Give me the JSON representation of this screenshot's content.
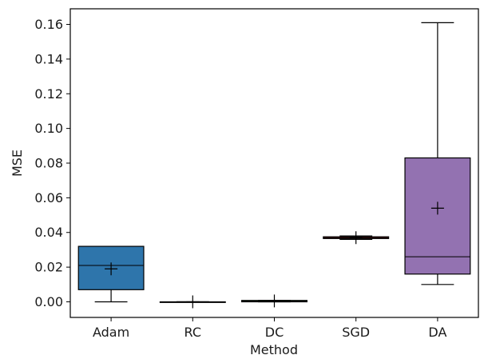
{
  "chart_data": {
    "type": "box",
    "title": "",
    "xlabel": "Method",
    "ylabel": "MSE",
    "ylim": [
      -0.009,
      0.169
    ],
    "yticks": [
      "0.00",
      "0.02",
      "0.04",
      "0.06",
      "0.08",
      "0.10",
      "0.12",
      "0.14",
      "0.16"
    ],
    "grid": false,
    "legend": "none",
    "categories": [
      "Adam",
      "RC",
      "DC",
      "SGD",
      "DA"
    ],
    "boxes": [
      {
        "name": "Adam",
        "whislo": 0.0,
        "q1": 0.007,
        "median": 0.021,
        "q3": 0.032,
        "whishi": 0.032,
        "mean": 0.019,
        "color": "#2e75ab"
      },
      {
        "name": "RC",
        "whislo": 0.0,
        "q1": 0.0,
        "median": 0.0,
        "q3": 0.0,
        "whishi": 0.0,
        "mean": 0.0,
        "color": "#ff7f0e"
      },
      {
        "name": "DC",
        "whislo": 0.0,
        "q1": 0.0,
        "median": 0.0005,
        "q3": 0.0008,
        "whishi": 0.0008,
        "mean": 0.0005,
        "color": "#2ca02c"
      },
      {
        "name": "SGD",
        "whislo": 0.036,
        "q1": 0.0365,
        "median": 0.037,
        "q3": 0.0375,
        "whishi": 0.038,
        "mean": 0.037,
        "color": "#d62728"
      },
      {
        "name": "DA",
        "whislo": 0.01,
        "q1": 0.016,
        "median": 0.026,
        "q3": 0.083,
        "whishi": 0.161,
        "mean": 0.054,
        "color": "#9372b1"
      }
    ]
  }
}
